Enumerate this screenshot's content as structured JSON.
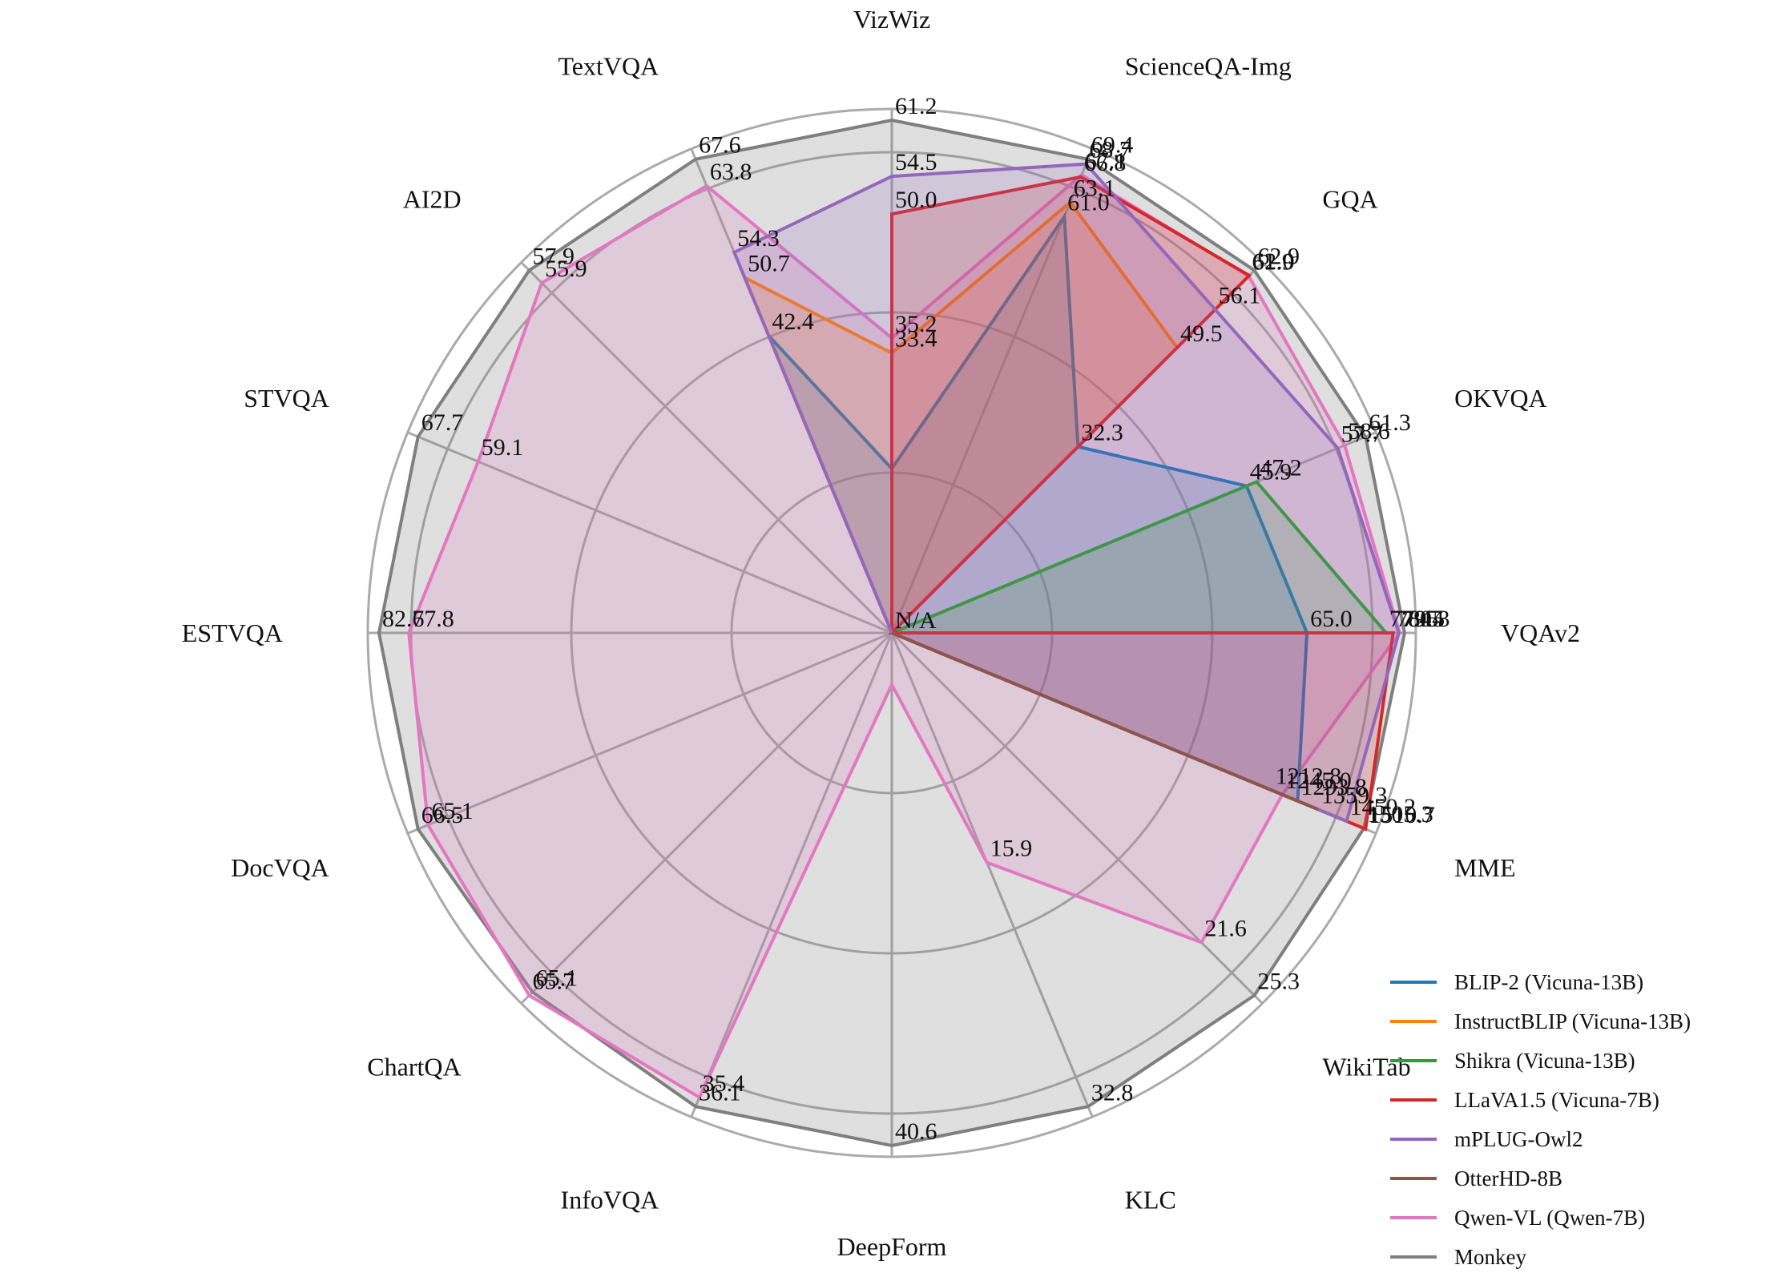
{
  "chart_data": {
    "type": "radar",
    "axes": [
      "VQAv2",
      "OKVQA",
      "GQA",
      "ScienceQA-Img",
      "VizWiz",
      "TextVQA",
      "AI2D",
      "STVQA",
      "ESTVQA",
      "DocVQA",
      "ChartQA",
      "InfoVQA",
      "DeepForm",
      "KLC",
      "WikiTab",
      "MME"
    ],
    "series": [
      {
        "name": "BLIP-2 (Vicuna-13B)",
        "color": "#1f77b4",
        "values": [
          65.0,
          45.9,
          32.3,
          61.0,
          19.6,
          42.4,
          null,
          null,
          null,
          null,
          null,
          null,
          null,
          null,
          null,
          1293.8
        ],
        "labels": [
          "65.0",
          "45.9",
          "32.3",
          "61.0",
          "",
          "42.4",
          "",
          "",
          "",
          "",
          "",
          "",
          "",
          "",
          "",
          "1293.8"
        ]
      },
      {
        "name": "InstructBLIP (Vicuna-13B)",
        "color": "#ff7f0e",
        "values": [
          null,
          null,
          49.5,
          63.1,
          33.4,
          50.7,
          null,
          null,
          null,
          null,
          null,
          null,
          null,
          null,
          null,
          1212.8
        ],
        "labels": [
          "",
          "",
          "49.5",
          "63.1",
          "33.4",
          "50.7",
          "",
          "",
          "",
          "",
          "",
          "",
          "",
          "",
          "",
          "1212.8"
        ]
      },
      {
        "name": "Shikra (Vicuna-13B)",
        "color": "#2ca02c",
        "values": [
          77.4,
          47.2,
          null,
          null,
          null,
          null,
          null,
          null,
          null,
          null,
          null,
          null,
          null,
          null,
          null,
          null
        ],
        "labels": [
          "77.4",
          "47.2",
          "",
          "",
          "",
          "",
          "",
          "",
          "",
          "",
          "",
          "",
          "",
          "",
          "",
          ""
        ]
      },
      {
        "name": "LLaVA1.5 (Vicuna-7B)",
        "color": "#d62728",
        "values": [
          78.5,
          null,
          62.0,
          66.8,
          50.0,
          null,
          null,
          null,
          null,
          null,
          null,
          null,
          null,
          null,
          null,
          1510.7
        ],
        "labels": [
          "78.5",
          "",
          "62.0",
          "66.8",
          "50.0",
          "",
          "",
          "",
          "",
          "",
          "",
          "",
          "",
          "",
          "",
          "1510.7"
        ]
      },
      {
        "name": "mPLUG-Owl2",
        "color": "#9467bd",
        "values": [
          79.4,
          57.7,
          56.1,
          68.7,
          54.5,
          54.3,
          null,
          null,
          null,
          null,
          null,
          null,
          null,
          null,
          null,
          1450.2
        ],
        "labels": [
          "79.4",
          "57.7",
          "56.1",
          "68.7",
          "54.5",
          "54.3",
          "",
          "",
          "",
          "",
          "",
          "",
          "",
          "",
          "",
          "1450.2"
        ]
      },
      {
        "name": "OtterHD-8B",
        "color": "#8c564b",
        "values": [
          null,
          null,
          null,
          null,
          null,
          null,
          null,
          null,
          null,
          null,
          null,
          null,
          null,
          null,
          null,
          1359.3
        ],
        "labels": [
          "",
          "",
          "",
          "",
          "",
          "",
          "",
          "",
          "",
          "",
          "",
          "",
          "",
          "",
          "",
          "1359.3"
        ]
      },
      {
        "name": "Qwen-VL (Qwen-7B)",
        "color": "#e377c2",
        "values": [
          79.5,
          58.6,
          61.9,
          67.1,
          35.2,
          63.8,
          55.9,
          59.1,
          77.8,
          65.1,
          65.7,
          35.4,
          4.1,
          15.9,
          21.6,
          1245.0
        ],
        "labels": [
          "79.5",
          "58.6",
          "61.9",
          "67.1",
          "35.2",
          "63.8",
          "55.9",
          "59.1",
          "77.8",
          "65.1",
          "65.7",
          "35.4",
          "",
          "15.9",
          "21.6",
          "1245.0"
        ]
      },
      {
        "name": "Monkey",
        "color": "#7f7f7f",
        "values": [
          80.3,
          61.3,
          62.9,
          69.4,
          61.2,
          67.6,
          57.9,
          67.7,
          82.6,
          66.5,
          65.1,
          36.1,
          40.6,
          32.8,
          25.3,
          1505.3
        ],
        "labels": [
          "80.3",
          "61.3",
          "62.9",
          "69.4",
          "61.2",
          "67.6",
          "57.9",
          "67.7",
          "82.6",
          "66.5",
          "65.1",
          "36.1",
          "40.6",
          "32.8",
          "25.3",
          "1505.3"
        ]
      }
    ],
    "extra_labels": [
      {
        "axis": 0,
        "text": "N/A"
      }
    ],
    "grid": true,
    "legend_position": "bottom-right"
  }
}
